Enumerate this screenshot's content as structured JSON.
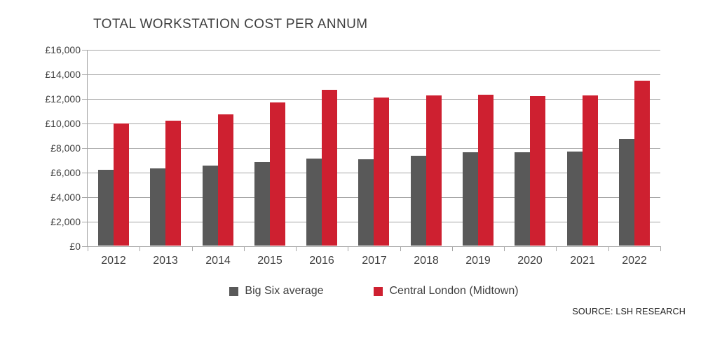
{
  "title": "TOTAL WORKSTATION COST PER ANNUM",
  "source": "SOURCE: LSH RESEARCH",
  "colors": {
    "big_six": "#595959",
    "central_london": "#ce2030",
    "axis": "#a6a6a6",
    "text": "#404040"
  },
  "chart_data": {
    "type": "bar",
    "title": "TOTAL WORKSTATION COST PER ANNUM",
    "categories": [
      "2012",
      "2013",
      "2014",
      "2015",
      "2016",
      "2017",
      "2018",
      "2019",
      "2020",
      "2021",
      "2022"
    ],
    "series": [
      {
        "name": "Big Six average",
        "color": "#595959",
        "values": [
          6150,
          6300,
          6500,
          6800,
          7100,
          7000,
          7300,
          7600,
          7600,
          7650,
          8700
        ]
      },
      {
        "name": "Central London (Midtown)",
        "color": "#ce2030",
        "values": [
          9950,
          10150,
          10700,
          11650,
          12700,
          12050,
          12200,
          12300,
          12150,
          12200,
          13450
        ]
      }
    ],
    "xlabel": "",
    "ylabel": "",
    "ylim": [
      0,
      16000
    ],
    "ytick_step": 2000,
    "ytick_labels": [
      "£0",
      "£2,000",
      "£4,000",
      "£6,000",
      "£8,000",
      "£10,000",
      "£12,000",
      "£14,000",
      "£16,000"
    ],
    "grid": true,
    "legend_position": "bottom",
    "source": "SOURCE: LSH RESEARCH"
  }
}
